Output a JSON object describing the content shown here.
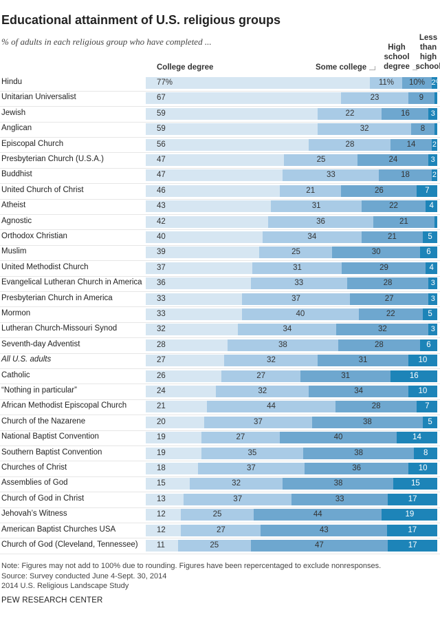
{
  "title": "Educational attainment of U.S. religious groups",
  "subtitle": "% of adults in each religious group who have completed ...",
  "headers": {
    "college": "College degree",
    "some": "Some college",
    "hs_1": "High",
    "hs_2": "school",
    "hs_3": "degree",
    "less_1": "Less",
    "less_2": "than",
    "less_3": "high",
    "less_4": "school"
  },
  "colors": {
    "college": "#d6e6f2",
    "some": "#a9cbe6",
    "hs": "#6ea7cf",
    "less": "#1d84b8",
    "text_dark": "#333333",
    "text_light": "#ffffff"
  },
  "chart_data": {
    "type": "bar",
    "orientation": "horizontal",
    "stacked": true,
    "title": "Educational attainment of U.S. religious groups",
    "subtitle": "% of adults in each religious group who have completed ...",
    "categories": [
      "Hindu",
      "Unitarian Universalist",
      "Jewish",
      "Anglican",
      "Episcopal Church",
      "Presbyterian Church (U.S.A.)",
      "Buddhist",
      "United Church of Christ",
      "Atheist",
      "Agnostic",
      "Orthodox Christian",
      "Muslim",
      "United Methodist Church",
      "Evangelical Lutheran Church in America",
      "Presbyterian Church in America",
      "Mormon",
      "Lutheran Church-Missouri Synod",
      "Seventh-day Adventist",
      "All U.S. adults",
      "Catholic",
      "“Nothing in particular”",
      "African Methodist Episcopal Church",
      "Church of the Nazarene",
      "National Baptist Convention",
      "Southern Baptist Convention",
      "Churches of Christ",
      "Assemblies of God",
      "Church of God in Christ",
      "Jehovah’s Witness",
      "American Baptist Churches USA",
      "Church of God (Cleveland, Tennessee)"
    ],
    "italic_categories": [
      "All U.S. adults"
    ],
    "series": [
      {
        "name": "College degree",
        "values": [
          77,
          67,
          59,
          59,
          56,
          47,
          47,
          46,
          43,
          42,
          40,
          39,
          37,
          36,
          33,
          33,
          32,
          28,
          27,
          26,
          24,
          21,
          20,
          19,
          19,
          18,
          15,
          13,
          12,
          12,
          11
        ]
      },
      {
        "name": "Some college",
        "values": [
          11,
          23,
          22,
          32,
          28,
          25,
          33,
          21,
          31,
          36,
          34,
          25,
          31,
          33,
          37,
          40,
          34,
          38,
          32,
          27,
          32,
          44,
          37,
          27,
          35,
          37,
          32,
          37,
          25,
          27,
          25
        ]
      },
      {
        "name": "High school degree",
        "values": [
          10,
          9,
          16,
          8,
          14,
          24,
          18,
          26,
          22,
          21,
          21,
          30,
          29,
          28,
          27,
          22,
          32,
          28,
          31,
          31,
          34,
          28,
          38,
          40,
          38,
          36,
          38,
          33,
          44,
          43,
          47
        ]
      },
      {
        "name": "Less than high school",
        "values": [
          2,
          1,
          3,
          1,
          2,
          3,
          2,
          7,
          4,
          1,
          5,
          6,
          4,
          3,
          3,
          5,
          3,
          6,
          10,
          16,
          10,
          7,
          5,
          14,
          8,
          10,
          15,
          17,
          19,
          17,
          17
        ]
      }
    ],
    "value_labels": {
      "first_row_suffix": "%",
      "hide_values": [
        [
          0,
          9
        ],
        [
          2,
          3
        ],
        [
          1,
          9
        ],
        [
          1,
          3
        ]
      ]
    },
    "xlim": [
      0,
      100
    ]
  },
  "notes": {
    "line1": "Note: Figures may not add to 100% due to rounding. Figures have been repercentaged to exclude nonresponses.",
    "line2": "Source: Survey conducted June 4-Sept. 30, 2014",
    "line3": "2014 U.S. Religious Landscape Study"
  },
  "source_org": "PEW RESEARCH CENTER"
}
